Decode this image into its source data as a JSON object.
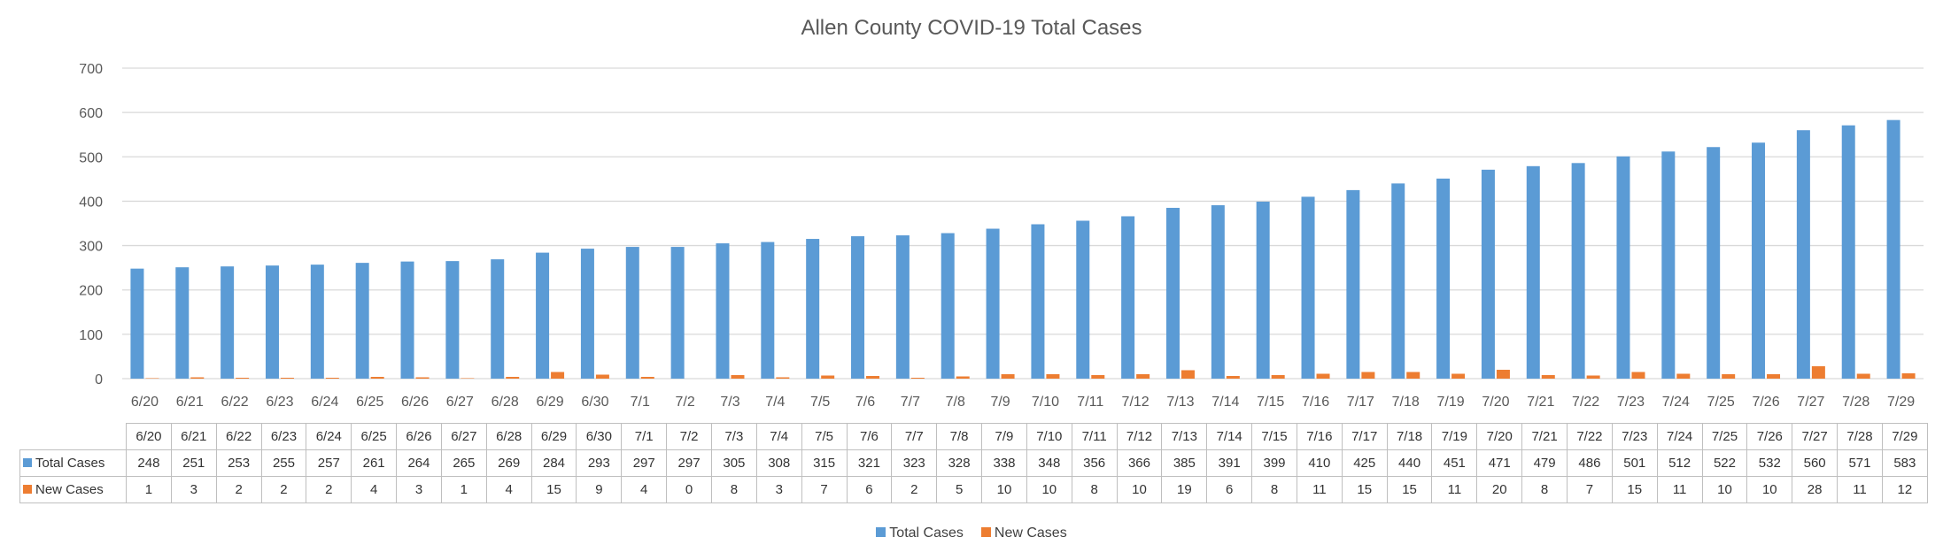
{
  "chart_data": {
    "type": "bar",
    "title": "Allen County COVID-19 Total Cases",
    "categories": [
      "6/20",
      "6/21",
      "6/22",
      "6/23",
      "6/24",
      "6/25",
      "6/26",
      "6/27",
      "6/28",
      "6/29",
      "6/30",
      "7/1",
      "7/2",
      "7/3",
      "7/4",
      "7/5",
      "7/6",
      "7/7",
      "7/8",
      "7/9",
      "7/10",
      "7/11",
      "7/12",
      "7/13",
      "7/14",
      "7/15",
      "7/16",
      "7/17",
      "7/18",
      "7/19",
      "7/20",
      "7/21",
      "7/22",
      "7/23",
      "7/24",
      "7/25",
      "7/26",
      "7/27",
      "7/28",
      "7/29"
    ],
    "series": [
      {
        "name": "Total Cases",
        "color": "#5b9bd5",
        "values": [
          248,
          251,
          253,
          255,
          257,
          261,
          264,
          265,
          269,
          284,
          293,
          297,
          297,
          305,
          308,
          315,
          321,
          323,
          328,
          338,
          348,
          356,
          366,
          385,
          391,
          399,
          410,
          425,
          440,
          451,
          471,
          479,
          486,
          501,
          512,
          522,
          532,
          560,
          571,
          583
        ]
      },
      {
        "name": "New Cases",
        "color": "#ed7d31",
        "values": [
          1,
          3,
          2,
          2,
          2,
          4,
          3,
          1,
          4,
          15,
          9,
          4,
          0,
          8,
          3,
          7,
          6,
          2,
          5,
          10,
          10,
          8,
          10,
          19,
          6,
          8,
          11,
          15,
          15,
          11,
          20,
          8,
          7,
          15,
          11,
          10,
          10,
          28,
          11,
          12
        ]
      }
    ],
    "ylim": [
      0,
      700
    ],
    "yticks": [
      0,
      100,
      200,
      300,
      400,
      500,
      600,
      700
    ],
    "grid": true,
    "legend": "bottom",
    "data_table": true
  }
}
